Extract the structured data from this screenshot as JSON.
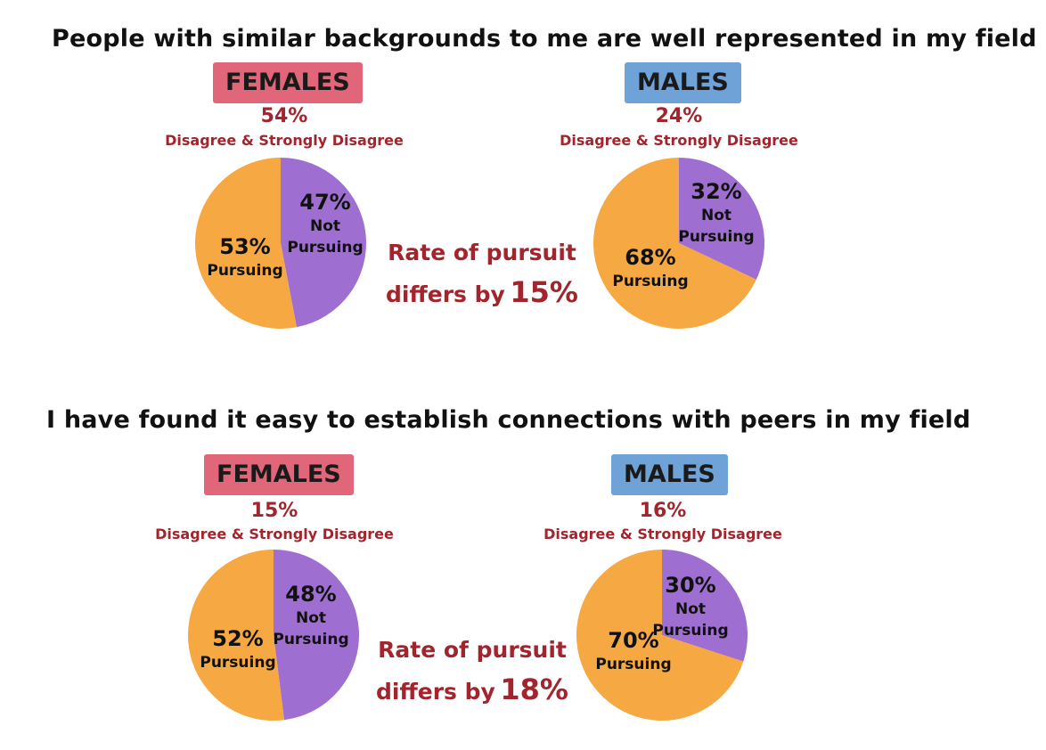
{
  "colors": {
    "pursuing": "#f6a842",
    "not_pursuing": "#9e6fd1",
    "accent_text": "#a2242d",
    "female_box": "#e2667a",
    "male_box": "#6fa3d8"
  },
  "chart_data": [
    {
      "type": "pie",
      "title": "People with similar backgrounds to me are well represented in my field",
      "group": "FEMALES",
      "disagree_pct": "54%",
      "disagree_label": "Disagree & Strongly Disagree",
      "slices": [
        {
          "label": "Not Pursuing",
          "pct_text": "47%",
          "value": 47
        },
        {
          "label": "Pursuing",
          "pct_text": "53%",
          "value": 53
        }
      ]
    },
    {
      "type": "pie",
      "title": "People with similar backgrounds to me are well represented in my field",
      "group": "MALES",
      "disagree_pct": "24%",
      "disagree_label": "Disagree & Strongly Disagree",
      "slices": [
        {
          "label": "Not Pursuing",
          "pct_text": "32%",
          "value": 32
        },
        {
          "label": "Pursuing",
          "pct_text": "68%",
          "value": 68
        }
      ]
    },
    {
      "type": "pie",
      "title": "I have found it easy to establish connections with peers in my field",
      "group": "FEMALES",
      "disagree_pct": "15%",
      "disagree_label": "Disagree & Strongly Disagree",
      "slices": [
        {
          "label": "Not Pursuing",
          "pct_text": "48%",
          "value": 48
        },
        {
          "label": "Pursuing",
          "pct_text": "52%",
          "value": 52
        }
      ]
    },
    {
      "type": "pie",
      "title": "I have found it easy to establish connections with peers in my field",
      "group": "MALES",
      "disagree_pct": "16%",
      "disagree_label": "Disagree & Strongly Disagree",
      "slices": [
        {
          "label": "Not Pursuing",
          "pct_text": "30%",
          "value": 30
        },
        {
          "label": "Pursuing",
          "pct_text": "70%",
          "value": 70
        }
      ]
    }
  ],
  "sections": [
    {
      "title": "People with similar backgrounds to me are well represented in my field",
      "pursuit_line1": "Rate of pursuit",
      "pursuit_line2": "differs by",
      "pursuit_value": "15%"
    },
    {
      "title": "I have found it easy to establish connections with peers in my field",
      "pursuit_line1": "Rate of pursuit",
      "pursuit_line2": "differs by",
      "pursuit_value": "18%"
    }
  ]
}
